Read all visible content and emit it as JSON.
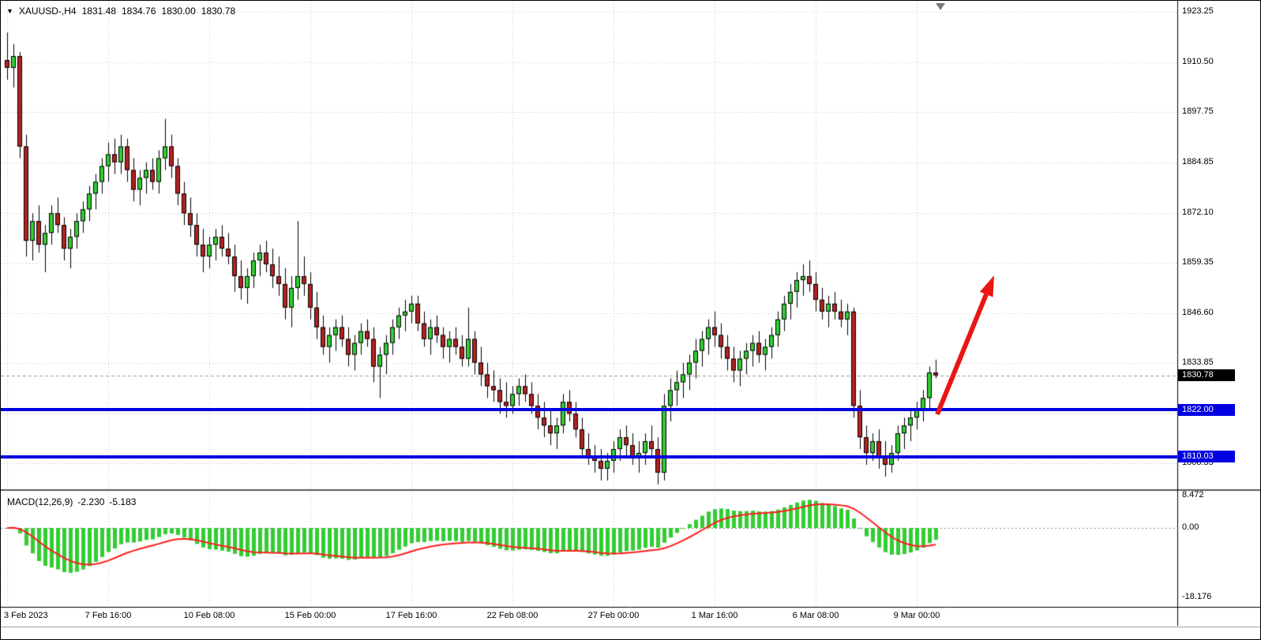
{
  "icons": {
    "collapse_icon": "▼"
  },
  "header": {
    "symbol_period": "XAUUSD-,H4",
    "open": "1831.48",
    "high": "1834.76",
    "low": "1830.00",
    "close": "1830.78"
  },
  "price_axis": {
    "labels": [
      "1923.25",
      "1910.50",
      "1897.75",
      "1884.85",
      "1872.10",
      "1859.35",
      "1846.60",
      "1833.85",
      "1821.10",
      "1808.35"
    ],
    "current_price": "1830.78",
    "current_price_bg": "#000000",
    "level_badge_bg": "#0000e0"
  },
  "macd": {
    "name": "MACD(12,26,9)",
    "main_value_text": "-2.230",
    "signal_value_text": "-5.183",
    "axis_labels": [
      "8.472",
      "0.00",
      "-18.176"
    ]
  },
  "chart_data": {
    "type": "candlestick",
    "symbol": "XAUUSD-",
    "timeframe": "H4",
    "title": "XAUUSD-,H4",
    "current_price": 1830.78,
    "current_bar": {
      "open": 1831.48,
      "high": 1834.76,
      "low": 1830.0,
      "close": 1830.78
    },
    "up_color": "#32cd32",
    "down_color": "#b22222",
    "grid": "dotted",
    "price_gridlines": [
      1923.25,
      1910.5,
      1897.75,
      1884.85,
      1872.1,
      1859.35,
      1846.6,
      1833.85,
      1821.1,
      1808.35
    ],
    "x_gridlines": [
      {
        "label": "3 Feb 2023",
        "index": 0
      },
      {
        "label": "7 Feb 16:00",
        "index": 16
      },
      {
        "label": "10 Feb 08:00",
        "index": 32
      },
      {
        "label": "15 Feb 00:00",
        "index": 48
      },
      {
        "label": "17 Feb 16:00",
        "index": 64
      },
      {
        "label": "22 Feb 08:00",
        "index": 80
      },
      {
        "label": "27 Feb 00:00",
        "index": 96
      },
      {
        "label": "1 Mar 16:00",
        "index": 112
      },
      {
        "label": "6 Mar 08:00",
        "index": 128
      },
      {
        "label": "9 Mar 00:00",
        "index": 144
      }
    ],
    "levels": [
      {
        "label": "1822.00",
        "price": 1822.0,
        "color": "#0000e0"
      },
      {
        "label": "1810.03",
        "price": 1810.03,
        "color": "#0000e0"
      }
    ],
    "candles": [
      [
        1911,
        1918,
        1906,
        1909
      ],
      [
        1909,
        1915,
        1904,
        1912
      ],
      [
        1912,
        1913,
        1886,
        1889
      ],
      [
        1889,
        1892,
        1861,
        1865
      ],
      [
        1865,
        1872,
        1860,
        1870
      ],
      [
        1870,
        1874,
        1862,
        1864
      ],
      [
        1864,
        1869,
        1857,
        1867
      ],
      [
        1867,
        1874,
        1864,
        1872
      ],
      [
        1872,
        1876,
        1867,
        1869
      ],
      [
        1869,
        1871,
        1860,
        1863
      ],
      [
        1863,
        1868,
        1858,
        1866
      ],
      [
        1866,
        1872,
        1863,
        1870
      ],
      [
        1870,
        1875,
        1867,
        1873
      ],
      [
        1873,
        1879,
        1870,
        1877
      ],
      [
        1877,
        1882,
        1873,
        1880
      ],
      [
        1880,
        1886,
        1877,
        1884
      ],
      [
        1884,
        1890,
        1880,
        1887
      ],
      [
        1887,
        1891,
        1882,
        1885
      ],
      [
        1885,
        1892,
        1882,
        1889
      ],
      [
        1889,
        1891,
        1880,
        1883
      ],
      [
        1883,
        1886,
        1875,
        1878
      ],
      [
        1878,
        1883,
        1874,
        1881
      ],
      [
        1881,
        1885,
        1877,
        1883
      ],
      [
        1883,
        1886,
        1878,
        1880
      ],
      [
        1880,
        1888,
        1877,
        1886
      ],
      [
        1886,
        1896,
        1883,
        1889
      ],
      [
        1889,
        1892,
        1881,
        1884
      ],
      [
        1884,
        1886,
        1874,
        1877
      ],
      [
        1877,
        1880,
        1869,
        1872
      ],
      [
        1872,
        1876,
        1866,
        1869
      ],
      [
        1869,
        1872,
        1861,
        1864
      ],
      [
        1864,
        1868,
        1857,
        1861
      ],
      [
        1861,
        1866,
        1858,
        1864
      ],
      [
        1864,
        1868,
        1860,
        1866
      ],
      [
        1866,
        1869,
        1861,
        1863
      ],
      [
        1863,
        1867,
        1859,
        1861
      ],
      [
        1861,
        1864,
        1852,
        1856
      ],
      [
        1856,
        1860,
        1850,
        1853
      ],
      [
        1853,
        1858,
        1849,
        1856
      ],
      [
        1856,
        1862,
        1853,
        1860
      ],
      [
        1860,
        1864,
        1856,
        1862
      ],
      [
        1862,
        1865,
        1857,
        1859
      ],
      [
        1859,
        1863,
        1853,
        1856
      ],
      [
        1856,
        1861,
        1851,
        1854
      ],
      [
        1854,
        1858,
        1845,
        1848
      ],
      [
        1848,
        1856,
        1843,
        1853
      ],
      [
        1853,
        1870,
        1850,
        1856
      ],
      [
        1856,
        1861,
        1851,
        1854
      ],
      [
        1854,
        1857,
        1845,
        1848
      ],
      [
        1848,
        1852,
        1840,
        1843
      ],
      [
        1843,
        1846,
        1836,
        1838
      ],
      [
        1838,
        1843,
        1834,
        1841
      ],
      [
        1841,
        1845,
        1837,
        1843
      ],
      [
        1843,
        1846,
        1838,
        1840
      ],
      [
        1840,
        1843,
        1833,
        1836
      ],
      [
        1836,
        1841,
        1832,
        1839
      ],
      [
        1839,
        1844,
        1836,
        1842
      ],
      [
        1842,
        1845,
        1838,
        1840
      ],
      [
        1840,
        1843,
        1829,
        1833
      ],
      [
        1833,
        1838,
        1825,
        1836
      ],
      [
        1836,
        1841,
        1831,
        1839
      ],
      [
        1839,
        1845,
        1836,
        1843
      ],
      [
        1843,
        1848,
        1840,
        1846
      ],
      [
        1846,
        1850,
        1842,
        1847
      ],
      [
        1847,
        1851,
        1844,
        1849
      ],
      [
        1849,
        1851,
        1842,
        1844
      ],
      [
        1844,
        1847,
        1838,
        1840
      ],
      [
        1840,
        1845,
        1836,
        1843
      ],
      [
        1843,
        1846,
        1839,
        1841
      ],
      [
        1841,
        1843,
        1835,
        1838
      ],
      [
        1838,
        1842,
        1834,
        1840
      ],
      [
        1840,
        1843,
        1836,
        1838
      ],
      [
        1838,
        1841,
        1833,
        1835
      ],
      [
        1835,
        1848,
        1833,
        1840
      ],
      [
        1840,
        1842,
        1831,
        1834
      ],
      [
        1834,
        1838,
        1828,
        1831
      ],
      [
        1831,
        1834,
        1825,
        1828
      ],
      [
        1828,
        1832,
        1824,
        1827
      ],
      [
        1827,
        1830,
        1821,
        1824
      ],
      [
        1824,
        1829,
        1820,
        1823
      ],
      [
        1823,
        1828,
        1821,
        1826
      ],
      [
        1826,
        1830,
        1823,
        1828
      ],
      [
        1828,
        1831,
        1824,
        1826
      ],
      [
        1826,
        1829,
        1821,
        1823
      ],
      [
        1823,
        1826,
        1817,
        1820
      ],
      [
        1820,
        1824,
        1815,
        1818
      ],
      [
        1818,
        1822,
        1813,
        1816
      ],
      [
        1816,
        1820,
        1812,
        1818
      ],
      [
        1818,
        1826,
        1816,
        1824
      ],
      [
        1824,
        1827,
        1819,
        1821
      ],
      [
        1821,
        1824,
        1815,
        1817
      ],
      [
        1817,
        1820,
        1810,
        1812
      ],
      [
        1812,
        1816,
        1808,
        1810
      ],
      [
        1810,
        1813,
        1806,
        1809
      ],
      [
        1809,
        1812,
        1804,
        1807
      ],
      [
        1807,
        1811,
        1804,
        1809
      ],
      [
        1809,
        1814,
        1806,
        1812
      ],
      [
        1812,
        1817,
        1809,
        1815
      ],
      [
        1815,
        1818,
        1810,
        1813
      ],
      [
        1813,
        1816,
        1808,
        1810
      ],
      [
        1810,
        1814,
        1806,
        1811
      ],
      [
        1811,
        1816,
        1808,
        1814
      ],
      [
        1814,
        1818,
        1810,
        1812
      ],
      [
        1812,
        1815,
        1803,
        1806
      ],
      [
        1806,
        1826,
        1804,
        1823
      ],
      [
        1823,
        1830,
        1819,
        1827
      ],
      [
        1827,
        1832,
        1823,
        1829
      ],
      [
        1829,
        1834,
        1825,
        1831
      ],
      [
        1831,
        1836,
        1827,
        1834
      ],
      [
        1834,
        1840,
        1830,
        1837
      ],
      [
        1837,
        1842,
        1833,
        1840
      ],
      [
        1840,
        1845,
        1836,
        1843
      ],
      [
        1843,
        1847,
        1838,
        1841
      ],
      [
        1841,
        1844,
        1835,
        1838
      ],
      [
        1838,
        1841,
        1832,
        1835
      ],
      [
        1835,
        1838,
        1829,
        1832
      ],
      [
        1832,
        1837,
        1828,
        1835
      ],
      [
        1835,
        1839,
        1831,
        1837
      ],
      [
        1837,
        1841,
        1833,
        1839
      ],
      [
        1839,
        1842,
        1834,
        1836
      ],
      [
        1836,
        1840,
        1832,
        1838
      ],
      [
        1838,
        1843,
        1835,
        1841
      ],
      [
        1841,
        1847,
        1838,
        1845
      ],
      [
        1845,
        1851,
        1842,
        1849
      ],
      [
        1849,
        1854,
        1845,
        1852
      ],
      [
        1852,
        1857,
        1848,
        1855
      ],
      [
        1855,
        1859,
        1851,
        1856
      ],
      [
        1856,
        1860,
        1852,
        1854
      ],
      [
        1854,
        1857,
        1847,
        1850
      ],
      [
        1850,
        1853,
        1845,
        1847
      ],
      [
        1847,
        1851,
        1843,
        1849
      ],
      [
        1849,
        1852,
        1845,
        1847
      ],
      [
        1847,
        1850,
        1843,
        1845
      ],
      [
        1845,
        1849,
        1841,
        1847
      ],
      [
        1847,
        1848,
        1820,
        1823
      ],
      [
        1823,
        1827,
        1812,
        1815
      ],
      [
        1815,
        1818,
        1808,
        1811
      ],
      [
        1811,
        1816,
        1809,
        1814
      ],
      [
        1814,
        1817,
        1807,
        1810
      ],
      [
        1810,
        1814,
        1805,
        1808
      ],
      [
        1808,
        1813,
        1806,
        1811
      ],
      [
        1811,
        1818,
        1809,
        1816
      ],
      [
        1816,
        1820,
        1812,
        1818
      ],
      [
        1818,
        1822,
        1814,
        1820
      ],
      [
        1820,
        1824,
        1817,
        1822
      ],
      [
        1822,
        1827,
        1819,
        1825
      ],
      [
        1825,
        1833,
        1822,
        1831.48
      ],
      [
        1831.48,
        1834.76,
        1830.0,
        1830.78
      ]
    ],
    "indicator": {
      "type": "macd",
      "fast": 12,
      "slow": 26,
      "signal": 9,
      "main_value": -2.23,
      "signal_value": -5.183,
      "axis_max": 8.472,
      "axis_zero": 0.0,
      "axis_min": -18.176,
      "histogram_color": "#32cd32",
      "signal_color": "#ff1e1e"
    },
    "annotations": [
      {
        "type": "arrow",
        "direction": "up",
        "color": "#ea1515",
        "meaning": "projected bullish move from 1822 support"
      }
    ]
  }
}
